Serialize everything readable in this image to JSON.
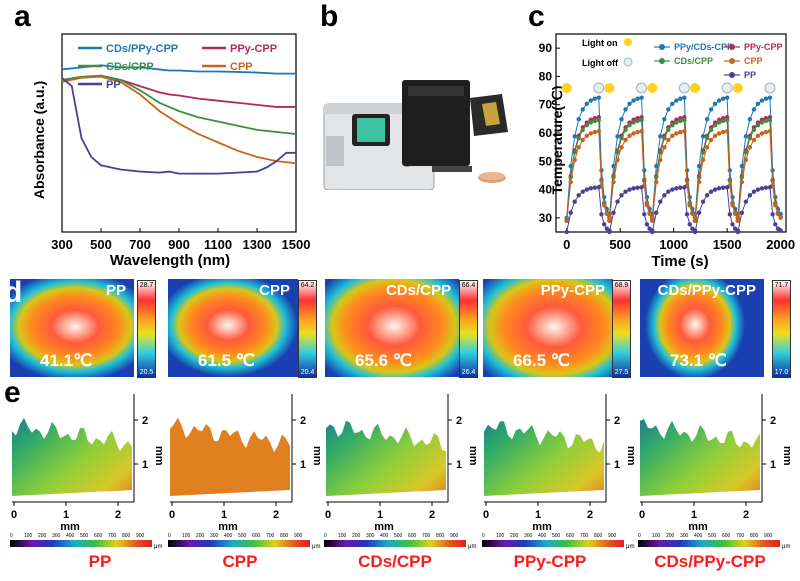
{
  "panels": {
    "a": "a",
    "b": "b",
    "c": "c",
    "d": "d",
    "e": "e"
  },
  "colors": {
    "cds_ppy_cpp": "#1f77b4",
    "ppy_cpp": "#b5295a",
    "cds_cpp": "#3e8e3e",
    "cpp": "#c8641e",
    "pp": "#4b3f99",
    "caption": "#ff1a1a"
  },
  "chart_data": [
    {
      "type": "line",
      "xlabel": "Wavelength (nm)",
      "ylabel": "Absorbance (a.u.)",
      "xlim": [
        300,
        1500
      ],
      "xticks": [
        300,
        500,
        700,
        900,
        1100,
        1300,
        1500
      ],
      "yticks": [],
      "legend": [
        "CDs/PPy-CPP",
        "PPy-CPP",
        "CDs/CPP",
        "CPP",
        "PP"
      ],
      "series": [
        {
          "name": "CDs/PPy-CPP",
          "x": [
            300,
            400,
            500,
            600,
            700,
            800,
            850,
            900,
            1000,
            1100,
            1200,
            1300,
            1400,
            1500
          ],
          "y": [
            0.78,
            0.79,
            0.8,
            0.79,
            0.79,
            0.78,
            0.775,
            0.775,
            0.77,
            0.77,
            0.768,
            0.765,
            0.76,
            0.76
          ]
        },
        {
          "name": "PPy-CPP",
          "x": [
            300,
            400,
            500,
            600,
            700,
            800,
            850,
            900,
            1000,
            1100,
            1200,
            1300,
            1400,
            1500
          ],
          "y": [
            0.73,
            0.74,
            0.75,
            0.73,
            0.7,
            0.67,
            0.66,
            0.655,
            0.64,
            0.63,
            0.62,
            0.61,
            0.6,
            0.6
          ]
        },
        {
          "name": "CDs/CPP",
          "x": [
            300,
            400,
            500,
            600,
            700,
            800,
            850,
            900,
            1000,
            1100,
            1200,
            1300,
            1400,
            1500
          ],
          "y": [
            0.73,
            0.745,
            0.75,
            0.73,
            0.68,
            0.62,
            0.6,
            0.58,
            0.55,
            0.53,
            0.51,
            0.49,
            0.48,
            0.47
          ]
        },
        {
          "name": "CPP",
          "x": [
            300,
            400,
            500,
            600,
            700,
            800,
            850,
            900,
            1000,
            1100,
            1200,
            1300,
            1400,
            1500
          ],
          "y": [
            0.72,
            0.74,
            0.745,
            0.72,
            0.66,
            0.58,
            0.55,
            0.52,
            0.47,
            0.43,
            0.39,
            0.36,
            0.34,
            0.33
          ]
        },
        {
          "name": "PP",
          "x": [
            300,
            350,
            380,
            400,
            450,
            500,
            600,
            700,
            800,
            850,
            900,
            1000,
            1100,
            1200,
            1300,
            1350,
            1400,
            1450,
            1500
          ],
          "y": [
            0.74,
            0.7,
            0.55,
            0.45,
            0.36,
            0.32,
            0.3,
            0.29,
            0.285,
            0.29,
            0.28,
            0.28,
            0.28,
            0.285,
            0.29,
            0.31,
            0.34,
            0.38,
            0.38
          ]
        }
      ]
    },
    {
      "type": "line",
      "xlabel": "Time (s)",
      "ylabel": "Temperature(℃)",
      "xlim": [
        -100,
        2050
      ],
      "ylim": [
        25,
        95
      ],
      "xticks": [
        0,
        500,
        1000,
        1500,
        2000
      ],
      "yticks": [
        30,
        40,
        50,
        60,
        70,
        80,
        90
      ],
      "legend": [
        "PPy/CDs-CPP",
        "PPy-CPP",
        "CDs/CPP",
        "CPP",
        "PP"
      ],
      "annotations": {
        "light_on": "Light on",
        "light_off": "Light off"
      },
      "cycles": [
        0,
        400,
        800,
        1200,
        1600
      ],
      "on_duration": 300,
      "series": [
        {
          "name": "PPy/CDs-CPP",
          "start": 30,
          "peak": 73
        },
        {
          "name": "PPy-CPP",
          "start": 29,
          "peak": 66
        },
        {
          "name": "CDs/CPP",
          "start": 29,
          "peak": 65
        },
        {
          "name": "CPP",
          "start": 29,
          "peak": 61
        },
        {
          "name": "PP",
          "start": 25,
          "peak": 41
        }
      ]
    }
  ],
  "thermal": [
    {
      "name": "PP",
      "temp": "41.1℃",
      "max": "28.7",
      "min": "20.5"
    },
    {
      "name": "CPP",
      "temp": "61.5 ℃",
      "max": "64.2",
      "min": "20.4"
    },
    {
      "name": "CDs/CPP",
      "temp": "65.6 ℃",
      "max": "66.4",
      "min": "26.4"
    },
    {
      "name": "PPy-CPP",
      "temp": "66.5 ℃",
      "max": "68.9",
      "min": "27.5"
    },
    {
      "name": "CDs/PPy-CPP",
      "temp": "73.1 ℃",
      "max": "71.7",
      "min": "17.0"
    }
  ],
  "topo": {
    "x_unit": "mm",
    "z_unit": "mm",
    "x_ticks": [
      "0",
      "1",
      "2"
    ],
    "z_ticks": [
      "1",
      "2"
    ],
    "scale_unit": "μm",
    "scale_ticks": [
      "0",
      "100",
      "200",
      "300",
      "400",
      "500",
      "600",
      "700",
      "800",
      "900"
    ]
  },
  "captions": [
    "PP",
    "CPP",
    "CDs/CPP",
    "PPy-CPP",
    "CDs/PPy-CPP"
  ]
}
